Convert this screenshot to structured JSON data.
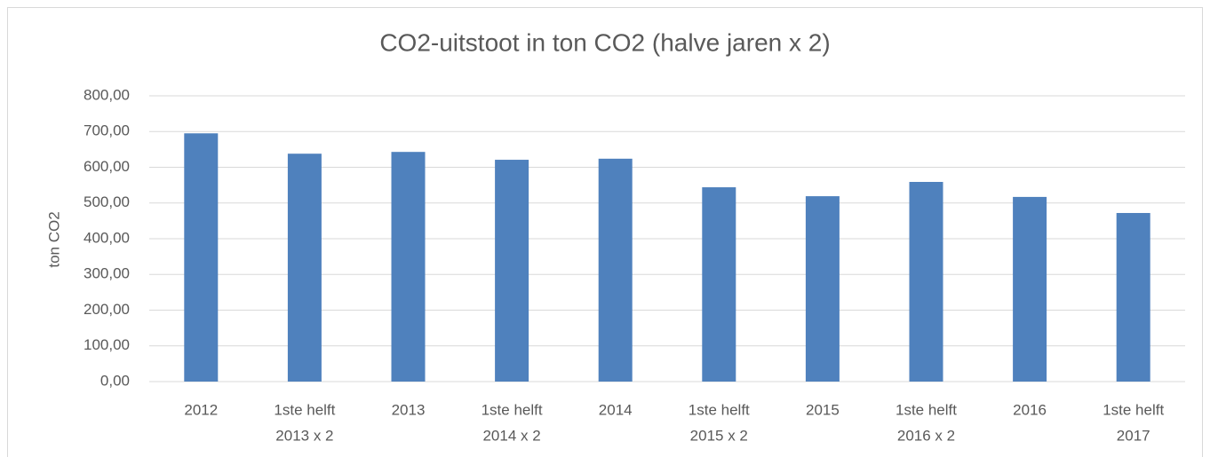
{
  "chart_data": {
    "type": "bar",
    "title": "CO2-uitstoot in ton CO2 (halve jaren x 2)",
    "y_label": "ton CO2",
    "categories": [
      [
        "2012"
      ],
      [
        "1ste helft",
        "2013 x 2"
      ],
      [
        "2013"
      ],
      [
        "1ste helft",
        "2014 x 2"
      ],
      [
        "2014"
      ],
      [
        "1ste helft",
        "2015 x 2"
      ],
      [
        "2015"
      ],
      [
        "1ste helft",
        "2016 x 2"
      ],
      [
        "2016"
      ],
      [
        "1ste helft",
        "2017"
      ]
    ],
    "values": [
      695,
      638,
      643,
      621,
      624,
      544,
      519,
      559,
      517,
      472
    ],
    "color": "#4f81bd",
    "ylim": [
      0,
      800
    ],
    "yticks": [
      {
        "value": 0,
        "label": "0,00"
      },
      {
        "value": 100,
        "label": "100,00"
      },
      {
        "value": 200,
        "label": "200,00"
      },
      {
        "value": 300,
        "label": "300,00"
      },
      {
        "value": 400,
        "label": "400,00"
      },
      {
        "value": 500,
        "label": "500,00"
      },
      {
        "value": 600,
        "label": "600,00"
      },
      {
        "value": 700,
        "label": "700,00"
      },
      {
        "value": 800,
        "label": "800,00"
      }
    ],
    "grid": true
  }
}
